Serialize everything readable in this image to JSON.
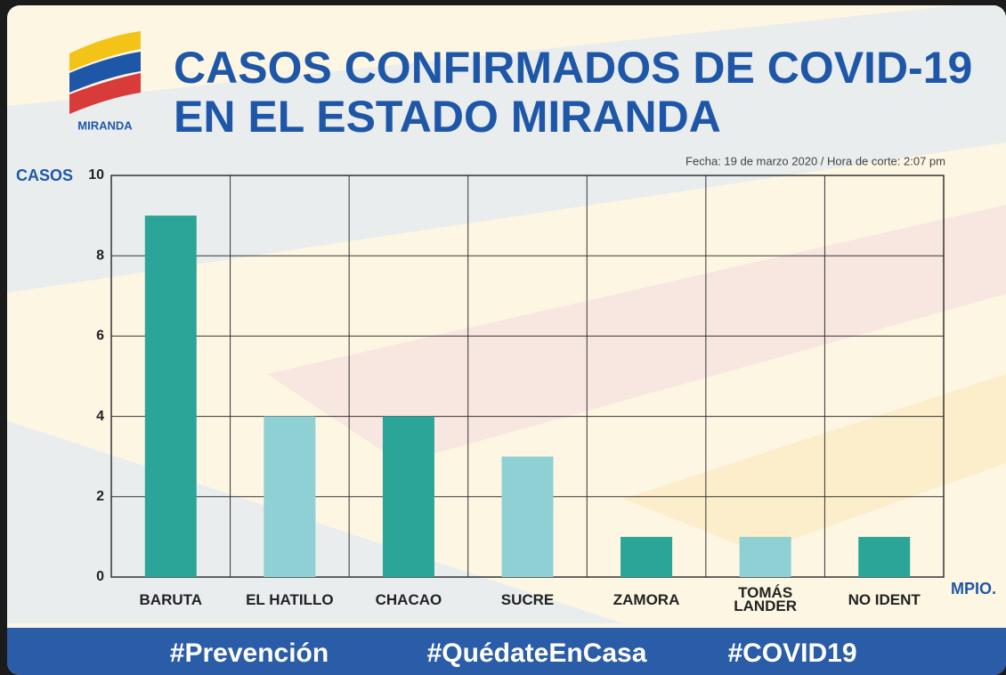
{
  "chart_data": {
    "type": "bar",
    "logo_text": "MIRANDA",
    "title": [
      "CASOS CONFIRMADOS DE COVID-19",
      "EN EL ESTADO MIRANDA"
    ],
    "subtitle": "Fecha: 19 de marzo 2020 / Hora de corte: 2:07 pm",
    "y_label": "CASOS",
    "x_label": "MPIO.",
    "categories": [
      "BARUTA",
      "EL HATILLO",
      "CHACAO",
      "SUCRE",
      "ZAMORA",
      "TOMÁS\nLANDER",
      "NO IDENT"
    ],
    "values": [
      9,
      4,
      4,
      3,
      1,
      1,
      1
    ],
    "colors": [
      "#2aa598",
      "#8ed0d3",
      "#2aa598",
      "#8ed0d3",
      "#2aa598",
      "#8ed0d3",
      "#2aa598"
    ],
    "ylim": [
      0,
      10
    ],
    "yticks": [
      0,
      2,
      4,
      6,
      8,
      10
    ],
    "grid": true,
    "footer": [
      "#Prevención",
      "#QuédateEnCasa",
      "#COVID19"
    ]
  }
}
